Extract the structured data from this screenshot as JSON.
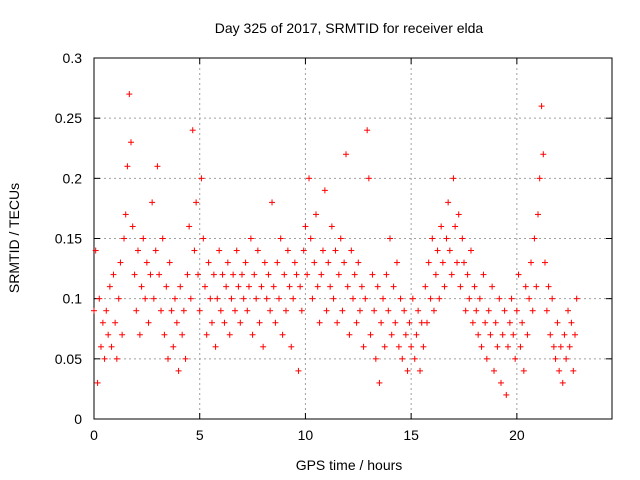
{
  "chart_data": {
    "type": "scatter",
    "title": "Day 325 of 2017, SRMTID for receiver elda",
    "xlabel": "GPS time / hours",
    "ylabel": "SRMTID / TECUs",
    "xlim": [
      0,
      24.5
    ],
    "ylim": [
      0,
      0.3
    ],
    "xticks": [
      0,
      5,
      10,
      15,
      20
    ],
    "xtick_labels": [
      "0",
      "5",
      "10",
      "15",
      "20"
    ],
    "yticks": [
      0,
      0.05,
      0.1,
      0.15,
      0.2,
      0.25,
      0.3
    ],
    "ytick_labels": [
      "0",
      "0.05",
      "0.1",
      "0.15",
      "0.2",
      "0.25",
      "0.3"
    ],
    "grid": true,
    "marker": "+",
    "marker_color": "#ff0000",
    "series": [
      {
        "name": "SRMTID",
        "x": [
          0.0,
          0.08,
          0.17,
          0.25,
          0.33,
          0.42,
          0.5,
          0.58,
          0.67,
          0.75,
          0.83,
          0.92,
          1.0,
          1.08,
          1.17,
          1.25,
          1.33,
          1.42,
          1.5,
          1.58,
          1.67,
          1.75,
          1.83,
          1.92,
          2.0,
          2.08,
          2.17,
          2.25,
          2.33,
          2.42,
          2.5,
          2.58,
          2.67,
          2.75,
          2.83,
          2.92,
          3.0,
          3.08,
          3.17,
          3.25,
          3.33,
          3.42,
          3.5,
          3.58,
          3.67,
          3.75,
          3.83,
          3.92,
          4.0,
          4.08,
          4.17,
          4.25,
          4.33,
          4.42,
          4.5,
          4.58,
          4.67,
          4.75,
          4.83,
          4.92,
          5.0,
          5.08,
          5.17,
          5.25,
          5.33,
          5.42,
          5.5,
          5.58,
          5.67,
          5.75,
          5.83,
          5.92,
          6.0,
          6.08,
          6.17,
          6.25,
          6.33,
          6.42,
          6.5,
          6.58,
          6.67,
          6.75,
          6.83,
          6.92,
          7.0,
          7.08,
          7.17,
          7.25,
          7.33,
          7.42,
          7.5,
          7.58,
          7.67,
          7.75,
          7.83,
          7.92,
          8.0,
          8.08,
          8.17,
          8.25,
          8.33,
          8.42,
          8.5,
          8.58,
          8.67,
          8.75,
          8.83,
          8.92,
          9.0,
          9.08,
          9.17,
          9.25,
          9.33,
          9.42,
          9.5,
          9.58,
          9.67,
          9.75,
          9.83,
          9.92,
          10.0,
          10.08,
          10.17,
          10.25,
          10.33,
          10.42,
          10.5,
          10.58,
          10.67,
          10.75,
          10.83,
          10.92,
          11.0,
          11.08,
          11.17,
          11.25,
          11.33,
          11.42,
          11.5,
          11.58,
          11.67,
          11.75,
          11.83,
          11.92,
          12.0,
          12.08,
          12.17,
          12.25,
          12.33,
          12.42,
          12.5,
          12.58,
          12.67,
          12.75,
          12.83,
          12.92,
          13.0,
          13.08,
          13.17,
          13.25,
          13.33,
          13.42,
          13.5,
          13.58,
          13.67,
          13.75,
          13.83,
          13.92,
          14.0,
          14.08,
          14.17,
          14.25,
          14.33,
          14.42,
          14.5,
          14.58,
          14.67,
          14.75,
          14.83,
          14.92,
          15.0,
          15.08,
          15.17,
          15.25,
          15.33,
          15.42,
          15.5,
          15.58,
          15.67,
          15.75,
          15.83,
          15.92,
          16.0,
          16.08,
          16.17,
          16.25,
          16.33,
          16.42,
          16.5,
          16.58,
          16.67,
          16.75,
          16.83,
          16.92,
          17.0,
          17.08,
          17.17,
          17.25,
          17.33,
          17.42,
          17.5,
          17.58,
          17.67,
          17.75,
          17.83,
          17.92,
          18.0,
          18.08,
          18.17,
          18.25,
          18.33,
          18.42,
          18.5,
          18.58,
          18.67,
          18.75,
          18.83,
          18.92,
          19.0,
          19.08,
          19.17,
          19.25,
          19.33,
          19.42,
          19.5,
          19.58,
          19.67,
          19.75,
          19.83,
          19.92,
          20.0,
          20.08,
          20.17,
          20.25,
          20.33,
          20.42,
          20.5,
          20.58,
          20.67,
          20.75,
          20.83,
          20.92,
          21.0,
          21.08,
          21.17,
          21.25,
          21.33,
          21.42,
          21.5,
          21.58,
          21.67,
          21.75,
          21.83,
          21.92,
          22.0,
          22.08,
          22.17,
          22.25,
          22.33,
          22.42,
          22.5,
          22.58,
          22.67,
          22.75,
          22.83
        ],
        "y": [
          0.09,
          0.14,
          0.03,
          0.1,
          0.06,
          0.08,
          0.05,
          0.09,
          0.07,
          0.11,
          0.06,
          0.12,
          0.08,
          0.05,
          0.1,
          0.13,
          0.07,
          0.15,
          0.17,
          0.21,
          0.27,
          0.23,
          0.16,
          0.12,
          0.09,
          0.14,
          0.07,
          0.11,
          0.15,
          0.1,
          0.13,
          0.08,
          0.12,
          0.18,
          0.1,
          0.14,
          0.21,
          0.12,
          0.09,
          0.15,
          0.07,
          0.11,
          0.05,
          0.13,
          0.09,
          0.06,
          0.1,
          0.08,
          0.04,
          0.11,
          0.07,
          0.09,
          0.05,
          0.12,
          0.16,
          0.1,
          0.24,
          0.14,
          0.18,
          0.12,
          0.09,
          0.2,
          0.15,
          0.11,
          0.07,
          0.13,
          0.1,
          0.08,
          0.12,
          0.06,
          0.1,
          0.14,
          0.09,
          0.12,
          0.08,
          0.11,
          0.13,
          0.07,
          0.1,
          0.12,
          0.09,
          0.14,
          0.11,
          0.08,
          0.12,
          0.1,
          0.13,
          0.09,
          0.11,
          0.15,
          0.07,
          0.12,
          0.1,
          0.14,
          0.08,
          0.11,
          0.06,
          0.13,
          0.1,
          0.12,
          0.09,
          0.18,
          0.11,
          0.08,
          0.13,
          0.1,
          0.15,
          0.07,
          0.12,
          0.09,
          0.14,
          0.11,
          0.06,
          0.1,
          0.13,
          0.12,
          0.04,
          0.11,
          0.09,
          0.14,
          0.16,
          0.12,
          0.2,
          0.15,
          0.1,
          0.13,
          0.17,
          0.11,
          0.08,
          0.12,
          0.14,
          0.19,
          0.09,
          0.13,
          0.11,
          0.16,
          0.1,
          0.14,
          0.08,
          0.12,
          0.15,
          0.09,
          0.13,
          0.22,
          0.11,
          0.07,
          0.14,
          0.1,
          0.12,
          0.08,
          0.13,
          0.09,
          0.11,
          0.06,
          0.1,
          0.24,
          0.2,
          0.07,
          0.12,
          0.09,
          0.05,
          0.11,
          0.03,
          0.08,
          0.1,
          0.06,
          0.12,
          0.09,
          0.15,
          0.07,
          0.11,
          0.08,
          0.13,
          0.06,
          0.1,
          0.05,
          0.09,
          0.07,
          0.04,
          0.08,
          0.06,
          0.1,
          0.05,
          0.07,
          0.09,
          0.04,
          0.08,
          0.06,
          0.11,
          0.08,
          0.13,
          0.1,
          0.15,
          0.09,
          0.12,
          0.14,
          0.1,
          0.16,
          0.13,
          0.11,
          0.15,
          0.18,
          0.14,
          0.12,
          0.2,
          0.16,
          0.13,
          0.17,
          0.11,
          0.15,
          0.13,
          0.09,
          0.12,
          0.1,
          0.14,
          0.08,
          0.11,
          0.09,
          0.07,
          0.1,
          0.06,
          0.12,
          0.08,
          0.05,
          0.09,
          0.07,
          0.11,
          0.04,
          0.08,
          0.06,
          0.1,
          0.03,
          0.07,
          0.09,
          0.02,
          0.06,
          0.08,
          0.1,
          0.07,
          0.05,
          0.09,
          0.12,
          0.06,
          0.08,
          0.04,
          0.11,
          0.07,
          0.1,
          0.13,
          0.09,
          0.15,
          0.11,
          0.17,
          0.2,
          0.26,
          0.22,
          0.13,
          0.09,
          0.11,
          0.07,
          0.1,
          0.06,
          0.05,
          0.08,
          0.04,
          0.06,
          0.03,
          0.07,
          0.05,
          0.09,
          0.06,
          0.08,
          0.04,
          0.07,
          0.1
        ]
      }
    ]
  }
}
